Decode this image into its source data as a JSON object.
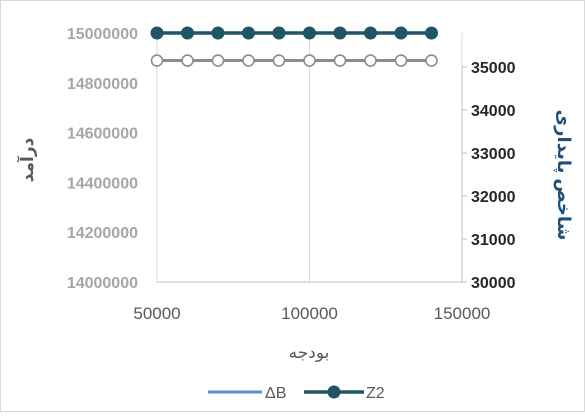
{
  "chart_data": {
    "type": "line",
    "x": [
      50000,
      60000,
      70000,
      80000,
      90000,
      100000,
      110000,
      120000,
      130000,
      140000
    ],
    "xlabel": "بودجه",
    "xlim": [
      50000,
      150000
    ],
    "xticks": [
      "50000",
      "100000",
      "150000"
    ],
    "ylabel_left": "درآمد",
    "ylim_left": [
      14000000,
      15000000
    ],
    "yticks_left": [
      "14000000",
      "14200000",
      "14400000",
      "14600000",
      "14800000",
      "15000000"
    ],
    "ylabel_right": "شاخص پایداری",
    "ylim_right": [
      30000,
      35000
    ],
    "yticks_right": [
      "30000",
      "31000",
      "32000",
      "33000",
      "34000",
      "35000"
    ],
    "grid": "vertical",
    "legend_position": "bottom",
    "series": [
      {
        "name": "ΔB",
        "axis": "left",
        "marker": "none",
        "color": "#5b8fc9",
        "values": [
          15000000,
          15000000,
          15000000,
          15000000,
          15000000,
          15000000,
          15000000,
          15000000,
          15000000,
          15000000
        ]
      },
      {
        "name": "Z2",
        "axis": "left",
        "marker": "filled-circle",
        "color": "#1f5565",
        "values": [
          15000000,
          15000000,
          15000000,
          15000000,
          15000000,
          15000000,
          15000000,
          15000000,
          15000000,
          15000000
        ]
      },
      {
        "name": "",
        "axis": "right",
        "marker": "open-circle",
        "color": "#8c8c8c",
        "values": [
          35150,
          35150,
          35150,
          35150,
          35150,
          35150,
          35150,
          35150,
          35150,
          35150
        ]
      }
    ]
  }
}
